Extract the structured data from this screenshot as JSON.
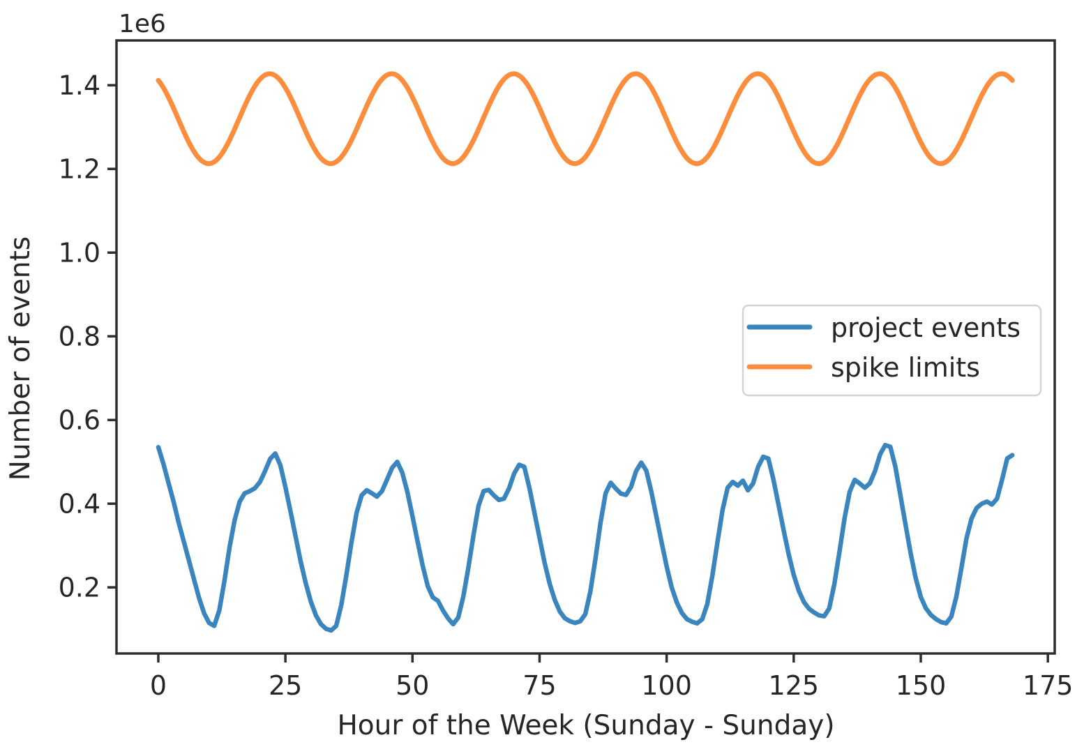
{
  "figure": {
    "background_color": "#ffffff",
    "frame_color": "#2e2e2e",
    "text_color": "#262626"
  },
  "chart_data": {
    "type": "line",
    "title": "",
    "xlabel": "Hour of the Week (Sunday - Sunday)",
    "ylabel": "Number of events",
    "y_offset_label": "1e6",
    "grid": false,
    "xlim": [
      -8.23,
      176.35
    ],
    "ylim_1e6": [
      0.042,
      1.507
    ],
    "xticks": [
      0,
      25,
      50,
      75,
      100,
      125,
      150,
      175
    ],
    "ytick_labels_1e6": [
      "0.2",
      "0.4",
      "0.6",
      "0.8",
      "1.0",
      "1.2",
      "1.4"
    ],
    "legend": {
      "position": "center right",
      "border_color": "#d4d4d4",
      "background": "#ffffff"
    },
    "series": [
      {
        "name": "project events",
        "color": "#3a85bd",
        "line_width": 6.5,
        "x_start_hour": 0,
        "x_step_hours": 1,
        "x_end_hour": 168,
        "values_1e6": [
          0.535,
          0.495,
          0.45,
          0.405,
          0.355,
          0.31,
          0.265,
          0.22,
          0.175,
          0.138,
          0.115,
          0.108,
          0.145,
          0.215,
          0.295,
          0.36,
          0.405,
          0.425,
          0.43,
          0.437,
          0.452,
          0.478,
          0.507,
          0.52,
          0.492,
          0.44,
          0.382,
          0.322,
          0.262,
          0.21,
          0.166,
          0.133,
          0.112,
          0.101,
          0.097,
          0.108,
          0.158,
          0.23,
          0.308,
          0.378,
          0.42,
          0.432,
          0.425,
          0.417,
          0.43,
          0.458,
          0.486,
          0.5,
          0.474,
          0.428,
          0.37,
          0.31,
          0.252,
          0.203,
          0.176,
          0.168,
          0.145,
          0.126,
          0.112,
          0.128,
          0.178,
          0.248,
          0.325,
          0.395,
          0.43,
          0.433,
          0.42,
          0.409,
          0.412,
          0.437,
          0.472,
          0.493,
          0.488,
          0.438,
          0.378,
          0.318,
          0.258,
          0.208,
          0.17,
          0.142,
          0.126,
          0.119,
          0.115,
          0.119,
          0.136,
          0.19,
          0.268,
          0.355,
          0.425,
          0.45,
          0.436,
          0.424,
          0.421,
          0.44,
          0.478,
          0.498,
          0.479,
          0.428,
          0.368,
          0.308,
          0.25,
          0.2,
          0.164,
          0.139,
          0.124,
          0.118,
          0.114,
          0.124,
          0.16,
          0.228,
          0.308,
          0.385,
          0.438,
          0.452,
          0.443,
          0.455,
          0.432,
          0.448,
          0.488,
          0.512,
          0.508,
          0.458,
          0.398,
          0.338,
          0.28,
          0.23,
          0.192,
          0.165,
          0.149,
          0.14,
          0.133,
          0.131,
          0.15,
          0.208,
          0.285,
          0.365,
          0.428,
          0.457,
          0.448,
          0.438,
          0.449,
          0.478,
          0.518,
          0.54,
          0.536,
          0.488,
          0.42,
          0.35,
          0.282,
          0.222,
          0.177,
          0.15,
          0.134,
          0.124,
          0.117,
          0.114,
          0.13,
          0.178,
          0.247,
          0.318,
          0.365,
          0.39,
          0.4,
          0.405,
          0.398,
          0.412,
          0.458,
          0.508,
          0.516
        ]
      },
      {
        "name": "spike limits",
        "color": "#fb8d3d",
        "line_width": 7,
        "model": "sinusoid",
        "mean_1e6": 1.32,
        "amplitude_1e6": 0.1075,
        "period_hours": 24,
        "phase_hours": 15.9,
        "min_1e6": 1.2125,
        "max_1e6": 1.4275,
        "x_start_hour": 0,
        "x_end_hour": 168,
        "sample_step_hours": 0.5
      }
    ]
  }
}
